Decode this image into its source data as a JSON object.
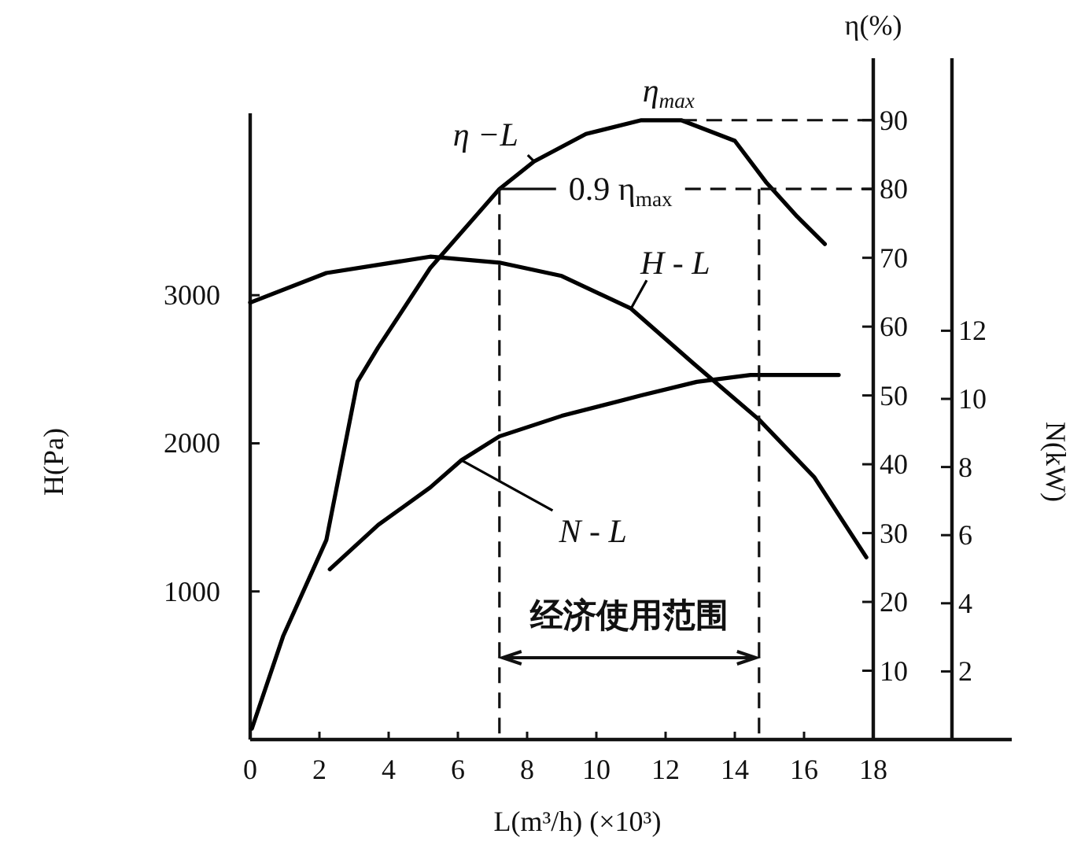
{
  "chart_data": {
    "type": "line",
    "xlabel": "L(m³/h)    (×10³)",
    "ylabel": "H(Pa)",
    "y2label": "η(%)",
    "y3label": "N(kW)",
    "xlim": [
      0,
      22
    ],
    "xticks": [
      0,
      2,
      4,
      6,
      8,
      10,
      12,
      14,
      16,
      18
    ],
    "ylim": [
      0,
      4600
    ],
    "yticks": [
      1000,
      2000,
      3000
    ],
    "y2lim": [
      0,
      99
    ],
    "y2ticks": [
      10,
      20,
      30,
      40,
      50,
      60,
      70,
      80,
      90
    ],
    "y3lim": [
      0,
      20
    ],
    "y3ticks": [
      2,
      4,
      6,
      8,
      10,
      12
    ],
    "marker": "none",
    "line_style": "solid",
    "series": [
      {
        "name": "η −L",
        "color": "#000000",
        "axis": "y2",
        "x": [
          0.05,
          0.95,
          2.2,
          3.1,
          3.7,
          5.2,
          7.2,
          8.2,
          9.7,
          11.3,
          12.45,
          14,
          14.9,
          15.8,
          16.6
        ],
        "values": [
          1.6,
          15,
          29,
          52,
          57,
          68.5,
          80,
          84,
          88,
          90,
          90,
          87,
          81,
          76,
          72
        ]
      },
      {
        "name": "H - L",
        "color": "#000000",
        "x": [
          0,
          2.2,
          5.2,
          7.2,
          9,
          11,
          12.8,
          14.7,
          16.3,
          17.8
        ],
        "values": [
          2950,
          3150,
          3260,
          3220,
          3130,
          2910,
          2540,
          2160,
          1770,
          1230
        ]
      },
      {
        "name": "N - L",
        "color": "#000000",
        "axis": "y3",
        "x": [
          2.3,
          3.7,
          5.2,
          6.1,
          7.2,
          9,
          11.3,
          12.9,
          14.45,
          17
        ],
        "values": [
          5,
          6.3,
          7.4,
          8.2,
          8.9,
          9.5,
          10.1,
          10.5,
          10.7,
          10.7
        ]
      }
    ],
    "ref_lines": [
      {
        "axis": "y2",
        "value": 90,
        "label": "η$_{max}$",
        "line_style": "dashed"
      },
      {
        "axis": "y2",
        "value": 80,
        "label": "0.9 η$_{max}$",
        "line_style": "dashed"
      },
      {
        "axis": "x",
        "value": 7.2,
        "line_style": "dashed"
      },
      {
        "axis": "x",
        "value": 14.7,
        "line_style": "dashed"
      }
    ],
    "annotations": [
      "经济使用范围"
    ]
  }
}
